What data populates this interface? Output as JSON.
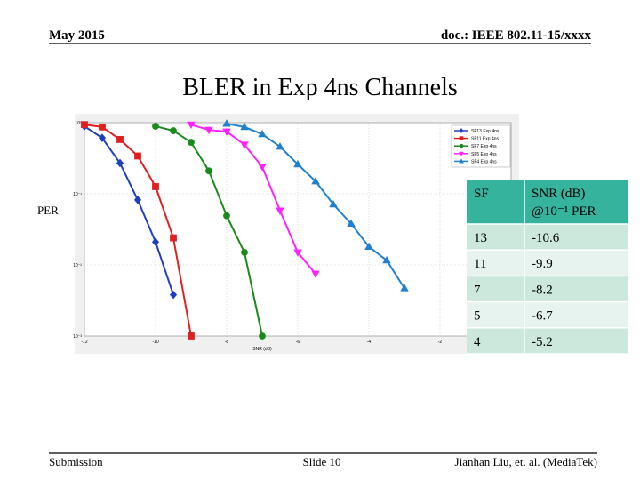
{
  "header": {
    "left": "May 2015",
    "right": "doc.: IEEE 802.11-15/xxxx"
  },
  "title": "BLER in Exp 4ns Channels",
  "y_label": "PER",
  "chart_data": {
    "type": "line",
    "x_label": "SNR (dB)",
    "log_y": true,
    "grid": true,
    "legend": "upper right",
    "xlim": [
      -12,
      0
    ],
    "xticks": [
      -12,
      -10,
      -8,
      -6,
      -4,
      -2
    ],
    "ylim": [
      0.001,
      1
    ],
    "yticks": [
      {
        "value": 1,
        "label": "10⁰"
      },
      {
        "value": 0.1,
        "label": "10⁻¹"
      },
      {
        "value": 0.01,
        "label": "10⁻²"
      },
      {
        "value": 0.001,
        "label": "10⁻³"
      }
    ],
    "series": [
      {
        "name": "SF13 Exp 4ns",
        "color": "#1f3fbf",
        "marker": "diamond",
        "x": [
          -12,
          -11.5,
          -11,
          -10.5,
          -10,
          -9.5
        ],
        "values": [
          0.89,
          0.61,
          0.27,
          0.082,
          0.021,
          0.0038
        ]
      },
      {
        "name": "SF11 Exp 4ns",
        "color": "#e02020",
        "marker": "square",
        "x": [
          -12,
          -11.5,
          -11,
          -10.5,
          -10,
          -9.5,
          -9
        ],
        "values": [
          0.94,
          0.87,
          0.58,
          0.34,
          0.126,
          0.024,
          0.001
        ]
      },
      {
        "name": "SF7 Exp 4ns",
        "color": "#1a8a1a",
        "marker": "circle",
        "x": [
          -10,
          -9.5,
          -9,
          -8.5,
          -8,
          -7.5,
          -7
        ],
        "values": [
          0.89,
          0.77,
          0.53,
          0.21,
          0.049,
          0.015,
          0.001
        ]
      },
      {
        "name": "SF5 Exp 4ns",
        "color": "#ff22ff",
        "marker": "triangle-down",
        "x": [
          -9,
          -8.5,
          -8,
          -7.5,
          -7,
          -6.5,
          -6,
          -5.5
        ],
        "values": [
          0.94,
          0.79,
          0.75,
          0.49,
          0.24,
          0.058,
          0.015,
          0.0075
        ]
      },
      {
        "name": "SF4 Exp 4ns",
        "color": "#2080d0",
        "marker": "triangle-up",
        "x": [
          -8,
          -7.5,
          -7,
          -6.5,
          -6,
          -5.5,
          -5,
          -4.5,
          -4,
          -3.5,
          -3
        ],
        "values": [
          0.97,
          0.87,
          0.69,
          0.46,
          0.26,
          0.15,
          0.071,
          0.038,
          0.018,
          0.0116,
          0.0047
        ]
      }
    ]
  },
  "table": {
    "header": [
      "SF",
      "SNR (dB) @10⁻¹ PER"
    ],
    "rows": [
      [
        "13",
        "-10.6"
      ],
      [
        "11",
        "-9.9"
      ],
      [
        "7",
        "-8.2"
      ],
      [
        "5",
        "-6.7"
      ],
      [
        "4",
        "-5.2"
      ]
    ]
  },
  "footer": {
    "left": "Submission",
    "center": "Slide 10",
    "right": "Jianhan Liu, et. al. (MediaTek)"
  }
}
